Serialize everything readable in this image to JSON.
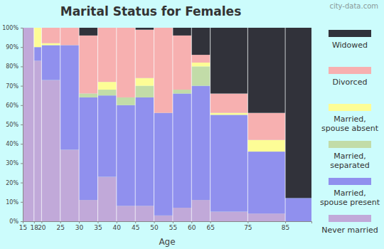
{
  "chart_data": {
    "type": "bar",
    "stacked": true,
    "title": "Marital Status for Females",
    "x_label": "Age",
    "annotations": [
      "city-data.com"
    ],
    "bins": [
      15,
      18,
      20,
      25,
      30,
      35,
      40,
      45,
      50,
      55,
      60,
      65,
      75,
      85,
      92
    ],
    "xlim": [
      15,
      92
    ],
    "xticks": [
      15,
      18,
      20,
      25,
      30,
      35,
      40,
      45,
      50,
      55,
      60,
      65,
      75,
      85
    ],
    "ylim": [
      0,
      100
    ],
    "yticks": [
      {
        "value": 0,
        "label": "0%"
      },
      {
        "value": 10,
        "label": "10%"
      },
      {
        "value": 20,
        "label": "20%"
      },
      {
        "value": 30,
        "label": "30%"
      },
      {
        "value": 40,
        "label": "40%"
      },
      {
        "value": 50,
        "label": "50%"
      },
      {
        "value": 60,
        "label": "60%"
      },
      {
        "value": 70,
        "label": "70%"
      },
      {
        "value": 80,
        "label": "80%"
      },
      {
        "value": 90,
        "label": "90%"
      },
      {
        "value": 100,
        "label": "100%"
      }
    ],
    "legend": "right",
    "series": [
      {
        "name": "Never married",
        "color": "#c1a9d9",
        "values": [
          100,
          83,
          73,
          37,
          11,
          23,
          8,
          8,
          3,
          7,
          11,
          5,
          4,
          0
        ]
      },
      {
        "name": "Married, spouse present",
        "color": "#9090ee",
        "values": [
          0,
          7,
          18,
          54,
          53,
          42,
          52,
          56,
          53,
          59,
          59,
          50,
          32,
          12
        ]
      },
      {
        "name": "Married, separated",
        "color": "#c2dca8",
        "values": [
          0,
          0,
          0,
          0,
          2,
          3,
          4,
          6,
          0,
          2,
          10,
          0,
          0,
          0
        ]
      },
      {
        "name": "Married, spouse absent",
        "color": "#fdfd96",
        "values": [
          0,
          10,
          1,
          0,
          0,
          4,
          0,
          4,
          0,
          0,
          2,
          1,
          6,
          0
        ]
      },
      {
        "name": "Divorced",
        "color": "#f7b0b0",
        "values": [
          0,
          0,
          8,
          9,
          30,
          28,
          36,
          25,
          44,
          28,
          4,
          10,
          14,
          0
        ]
      },
      {
        "name": "Widowed",
        "color": "#31323a",
        "values": [
          0,
          0,
          0,
          0,
          4,
          0,
          0,
          1,
          0,
          4,
          14,
          34,
          44,
          88
        ]
      }
    ]
  }
}
